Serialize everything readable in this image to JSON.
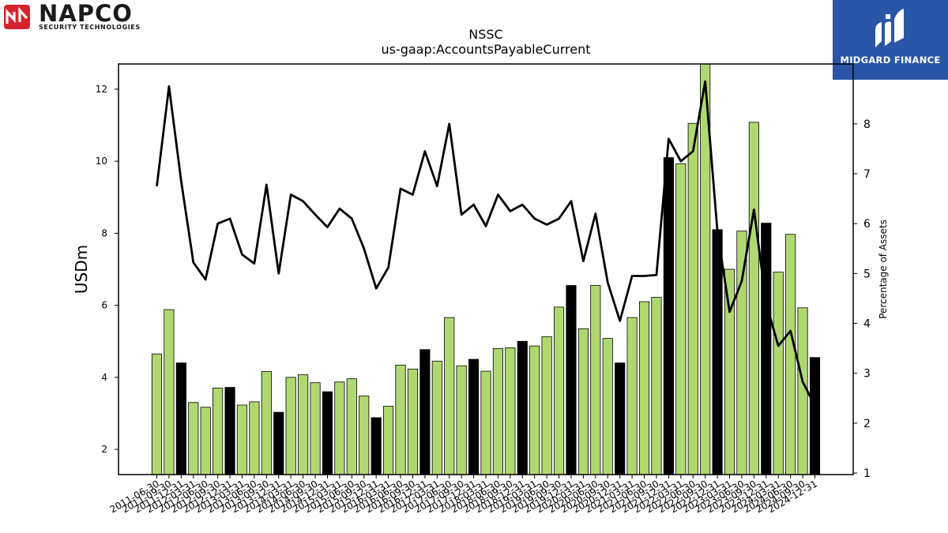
{
  "header": {
    "logo_left_name": "NAPCO",
    "logo_left_sub": "SECURITY TECHNOLOGIES",
    "logo_right_name": "MIDGARD FINANCE"
  },
  "chart_data": {
    "type": "bar",
    "title": "NSSC",
    "subtitle": "us-gaap:AccountsPayableCurrent",
    "ylabel": "USDm",
    "y2label": "Percentage of Assets",
    "ylim": [
      1.3,
      12.7
    ],
    "y2lim": [
      0.97,
      9.2
    ],
    "yticks": [
      2,
      4,
      6,
      8,
      10,
      12
    ],
    "y2ticks": [
      1,
      2,
      3,
      4,
      5,
      6,
      7,
      8
    ],
    "grid": false,
    "colors": {
      "bar_green": "#b0d870",
      "bar_black": "#000000",
      "line": "#000000"
    },
    "categories": [
      "2011-06-30",
      "2011-09-30",
      "2011-12-31",
      "2012-03-31",
      "2012-06-30",
      "2012-09-30",
      "2012-12-31",
      "2013-03-31",
      "2013-06-30",
      "2013-09-30",
      "2013-12-31",
      "2014-03-31",
      "2014-06-30",
      "2014-09-30",
      "2014-12-31",
      "2015-03-31",
      "2015-06-30",
      "2015-09-30",
      "2015-12-31",
      "2016-03-31",
      "2016-06-30",
      "2016-09-30",
      "2016-12-31",
      "2017-03-31",
      "2017-06-30",
      "2017-09-30",
      "2017-12-31",
      "2018-03-31",
      "2018-06-30",
      "2018-09-30",
      "2018-12-31",
      "2019-03-31",
      "2019-06-30",
      "2019-09-30",
      "2019-12-31",
      "2020-03-31",
      "2020-06-30",
      "2020-09-30",
      "2020-12-31",
      "2021-03-31",
      "2021-06-30",
      "2021-09-30",
      "2021-12-31",
      "2022-03-31",
      "2022-06-30",
      "2022-09-30",
      "2022-12-31",
      "2023-03-31",
      "2023-06-30",
      "2023-09-30",
      "2023-12-31",
      "2024-03-31",
      "2024-06-30",
      "2024-09-30",
      "2024-12-31"
    ],
    "series": [
      {
        "type": "bar",
        "values": [
          4.65,
          5.88,
          4.4,
          3.3,
          3.17,
          3.7,
          3.72,
          3.23,
          3.32,
          4.16,
          3.03,
          4.0,
          4.07,
          3.85,
          3.6,
          3.87,
          3.96,
          3.48,
          2.88,
          3.2,
          4.34,
          4.23,
          4.77,
          4.45,
          5.66,
          4.32,
          4.5,
          4.17,
          4.8,
          4.82,
          5.0,
          4.87,
          5.13,
          5.95,
          6.55,
          5.35,
          6.55,
          5.08,
          4.4,
          5.66,
          6.1,
          6.22,
          10.1,
          9.93,
          11.05,
          12.75,
          8.1,
          7.0,
          8.06,
          11.08,
          8.28,
          6.92,
          7.97,
          5.93,
          4.55
        ],
        "highlight": [
          false,
          false,
          true,
          false,
          false,
          false,
          true,
          false,
          false,
          false,
          true,
          false,
          false,
          false,
          true,
          false,
          false,
          false,
          true,
          false,
          false,
          false,
          true,
          false,
          false,
          false,
          true,
          false,
          false,
          false,
          true,
          false,
          false,
          false,
          true,
          false,
          false,
          false,
          true,
          false,
          false,
          false,
          true,
          false,
          false,
          false,
          true,
          false,
          false,
          false,
          true,
          false,
          false,
          false,
          true
        ]
      },
      {
        "type": "line",
        "axis": "right",
        "values": [
          6.75,
          8.75,
          6.85,
          5.22,
          4.88,
          6.0,
          6.1,
          5.38,
          5.2,
          6.78,
          5.0,
          6.58,
          6.45,
          6.18,
          5.93,
          6.3,
          6.1,
          5.5,
          4.7,
          5.12,
          6.7,
          6.58,
          7.45,
          6.75,
          8.0,
          6.18,
          6.38,
          5.95,
          6.58,
          6.25,
          6.38,
          6.1,
          5.98,
          6.1,
          6.45,
          5.25,
          6.2,
          4.82,
          4.05,
          4.95,
          4.95,
          4.97,
          7.7,
          7.25,
          7.45,
          8.85,
          5.85,
          4.23,
          4.85,
          6.28,
          4.4,
          3.55,
          3.85,
          2.83,
          2.35
        ]
      }
    ]
  }
}
